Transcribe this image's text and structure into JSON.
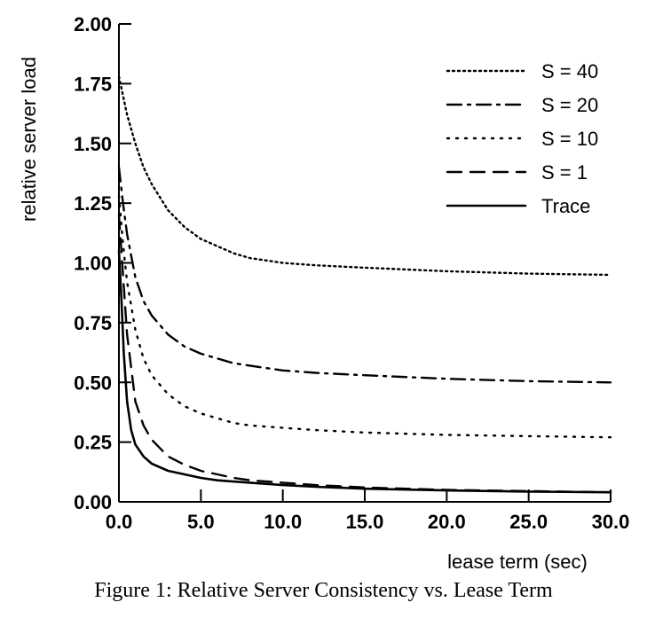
{
  "chart_data": {
    "type": "line",
    "xlabel": "lease term (sec)",
    "ylabel": "relative server load",
    "xlim": [
      0,
      30
    ],
    "ylim": [
      0,
      2
    ],
    "x_ticks": [
      "0.0",
      "5.0",
      "10.0",
      "15.0",
      "20.0",
      "25.0",
      "30.0"
    ],
    "y_ticks": [
      "0.00",
      "0.25",
      "0.50",
      "0.75",
      "1.00",
      "1.25",
      "1.50",
      "1.75",
      "2.00"
    ],
    "grid": false,
    "legend_position": "top-right",
    "series": [
      {
        "name": "S = 40",
        "style": "dotted-dense",
        "x": [
          0,
          0.25,
          0.5,
          1,
          1.5,
          2,
          3,
          4,
          5,
          6,
          7,
          8,
          10,
          12,
          15,
          20,
          25,
          30
        ],
        "y": [
          1.78,
          1.7,
          1.62,
          1.5,
          1.4,
          1.33,
          1.22,
          1.15,
          1.1,
          1.07,
          1.04,
          1.02,
          1.0,
          0.99,
          0.98,
          0.965,
          0.955,
          0.95
        ]
      },
      {
        "name": "S = 20",
        "style": "dash-dot",
        "x": [
          0,
          0.25,
          0.5,
          1,
          1.5,
          2,
          3,
          4,
          5,
          6,
          7,
          8,
          10,
          12,
          15,
          20,
          25,
          30
        ],
        "y": [
          1.4,
          1.25,
          1.12,
          0.94,
          0.84,
          0.78,
          0.7,
          0.65,
          0.62,
          0.6,
          0.58,
          0.57,
          0.55,
          0.54,
          0.53,
          0.515,
          0.505,
          0.5
        ]
      },
      {
        "name": "S = 10",
        "style": "dotted",
        "x": [
          0,
          0.25,
          0.5,
          1,
          1.5,
          2,
          3,
          4,
          5,
          6,
          7,
          8,
          10,
          12,
          15,
          20,
          25,
          30
        ],
        "y": [
          1.28,
          1.08,
          0.92,
          0.72,
          0.6,
          0.53,
          0.45,
          0.4,
          0.37,
          0.35,
          0.33,
          0.32,
          0.31,
          0.3,
          0.29,
          0.28,
          0.275,
          0.27
        ]
      },
      {
        "name": "S = 1",
        "style": "dashed",
        "x": [
          0,
          0.25,
          0.5,
          1,
          1.5,
          2,
          3,
          4,
          5,
          6,
          7,
          8,
          10,
          12,
          15,
          20,
          25,
          30
        ],
        "y": [
          1.2,
          0.95,
          0.7,
          0.42,
          0.32,
          0.26,
          0.19,
          0.155,
          0.13,
          0.115,
          0.1,
          0.09,
          0.08,
          0.07,
          0.06,
          0.05,
          0.045,
          0.04
        ]
      },
      {
        "name": "Trace",
        "style": "solid",
        "x": [
          0,
          0.15,
          0.3,
          0.5,
          0.75,
          1,
          1.5,
          2,
          3,
          4,
          5,
          6,
          7,
          8,
          10,
          12,
          15,
          20,
          25,
          30
        ],
        "y": [
          1.05,
          0.85,
          0.62,
          0.42,
          0.3,
          0.24,
          0.19,
          0.16,
          0.13,
          0.115,
          0.1,
          0.09,
          0.085,
          0.08,
          0.07,
          0.063,
          0.055,
          0.048,
          0.043,
          0.04
        ]
      }
    ]
  },
  "caption": "Figure 1: Relative Server Consistency vs. Lease Term"
}
